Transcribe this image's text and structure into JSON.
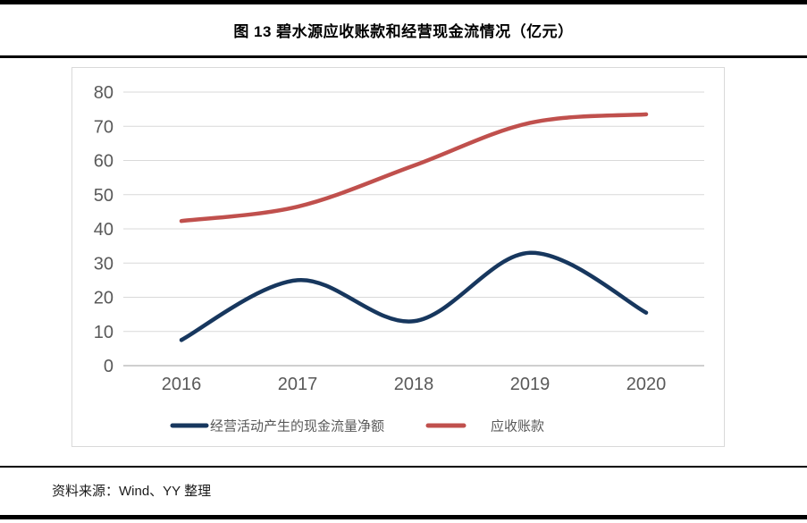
{
  "header": {
    "title": "图 13 碧水源应收账款和经营现金流情况（亿元）"
  },
  "footer": {
    "source": "资料来源：Wind、YY 整理"
  },
  "chart_data": {
    "type": "line",
    "title": "图 13 碧水源应收账款和经营现金流情况（亿元）",
    "categories": [
      "2016",
      "2017",
      "2018",
      "2019",
      "2020"
    ],
    "series": [
      {
        "name": "经营活动产生的现金流量净额",
        "color": "#17375e",
        "values": [
          7.5,
          25,
          13,
          33,
          15.5
        ]
      },
      {
        "name": "应收账款",
        "color": "#c0504d",
        "values": [
          42.3,
          46.5,
          58.5,
          71,
          73.5
        ]
      }
    ],
    "xlabel": "",
    "ylabel": "",
    "ylim": [
      0,
      80
    ],
    "yticks": [
      0,
      10,
      20,
      30,
      40,
      50,
      60,
      70,
      80
    ],
    "grid": true,
    "gridline_color": "#d9d9d9",
    "axis_line_color": "#bfbfbf",
    "tick_label_color": "#595959",
    "legend_position": "bottom",
    "smooth": true
  }
}
